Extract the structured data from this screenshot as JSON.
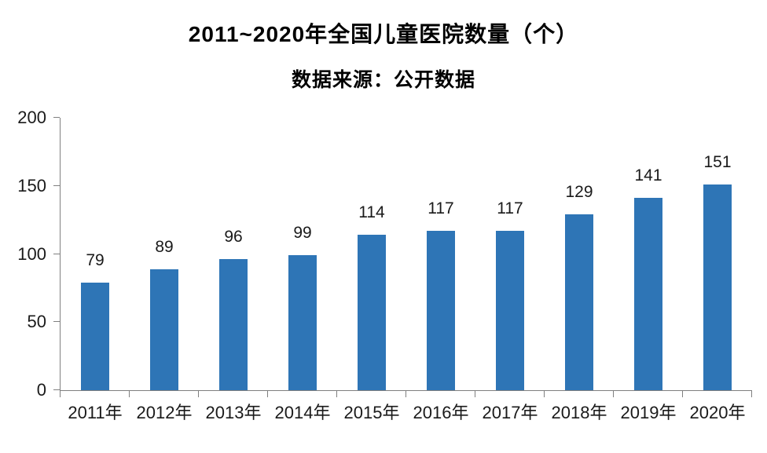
{
  "chart_data": {
    "type": "bar",
    "title": "2011~2020年全国儿童医院数量（个）",
    "subtitle": "数据来源：公开数据",
    "categories": [
      "2011年",
      "2012年",
      "2013年",
      "2014年",
      "2015年",
      "2016年",
      "2017年",
      "2018年",
      "2019年",
      "2020年"
    ],
    "values": [
      79,
      89,
      96,
      99,
      114,
      117,
      117,
      129,
      141,
      151
    ],
    "xlabel": "",
    "ylabel": "",
    "ylim": [
      0,
      200
    ],
    "yticks": [
      0,
      50,
      100,
      150,
      200
    ],
    "grid": false,
    "legend": false,
    "bar_color": "#2E75B6",
    "axis_color": "#7F7F7F",
    "text_color": "#1a1a1a",
    "background_color": "#ffffff"
  }
}
